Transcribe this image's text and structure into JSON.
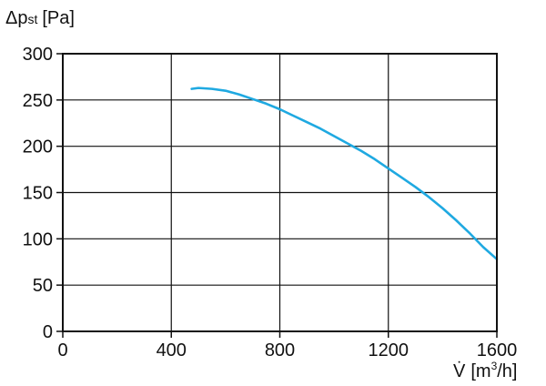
{
  "chart_data": {
    "type": "line",
    "title": "",
    "ylabel": {
      "prefix": "Δp",
      "subscript": "st",
      "unit": "[Pa]"
    },
    "xlabel": {
      "symbol": "V̇",
      "unit_open": "[m",
      "unit_sup": "3",
      "unit_close": "/h]"
    },
    "xlim": [
      0,
      1600
    ],
    "ylim": [
      0,
      300
    ],
    "x_ticks": [
      0,
      400,
      800,
      1200,
      1600
    ],
    "y_ticks": [
      0,
      50,
      100,
      150,
      200,
      250,
      300
    ],
    "grid": true,
    "legend": "none",
    "series": [
      {
        "color": "#1FA9E1",
        "x": [
          475,
          500,
          550,
          600,
          650,
          700,
          750,
          800,
          850,
          900,
          950,
          1000,
          1050,
          1100,
          1150,
          1200,
          1250,
          1300,
          1350,
          1400,
          1450,
          1500,
          1550,
          1600
        ],
        "y": [
          262,
          263,
          262,
          260,
          256,
          251,
          246,
          240,
          233,
          226,
          219,
          211,
          203,
          195,
          186,
          176,
          166,
          156,
          145,
          133,
          120,
          106,
          91,
          78
        ]
      }
    ]
  }
}
